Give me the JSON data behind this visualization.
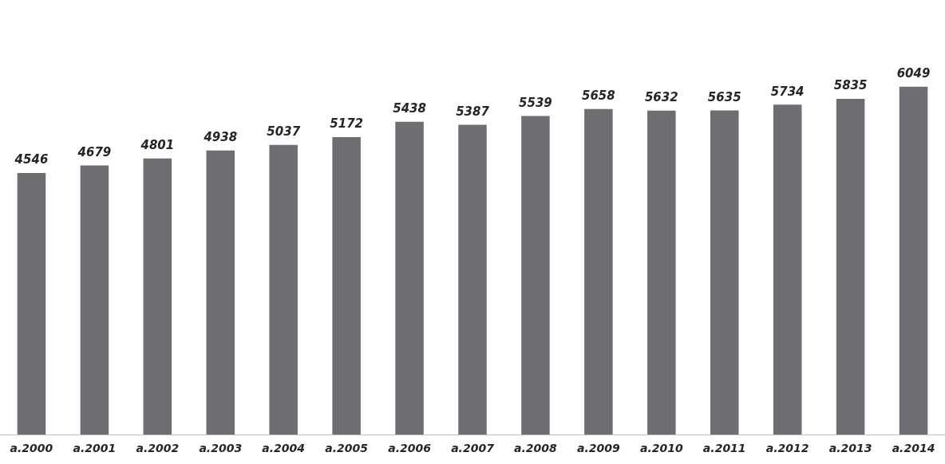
{
  "chart_data": {
    "type": "bar",
    "categories": [
      "a.2000",
      "a.2001",
      "a.2002",
      "a.2003",
      "a.2004",
      "a.2005",
      "a.2006",
      "a.2007",
      "a.2008",
      "a.2009",
      "a.2010",
      "a.2011",
      "a.2012",
      "a.2013",
      "a.2014"
    ],
    "values": [
      4546,
      4679,
      4801,
      4938,
      5037,
      5172,
      5438,
      5387,
      5539,
      5658,
      5632,
      5635,
      5734,
      5835,
      6049
    ],
    "color": "#6d6e71",
    "data_labels": true,
    "grid": false,
    "legend": false
  }
}
